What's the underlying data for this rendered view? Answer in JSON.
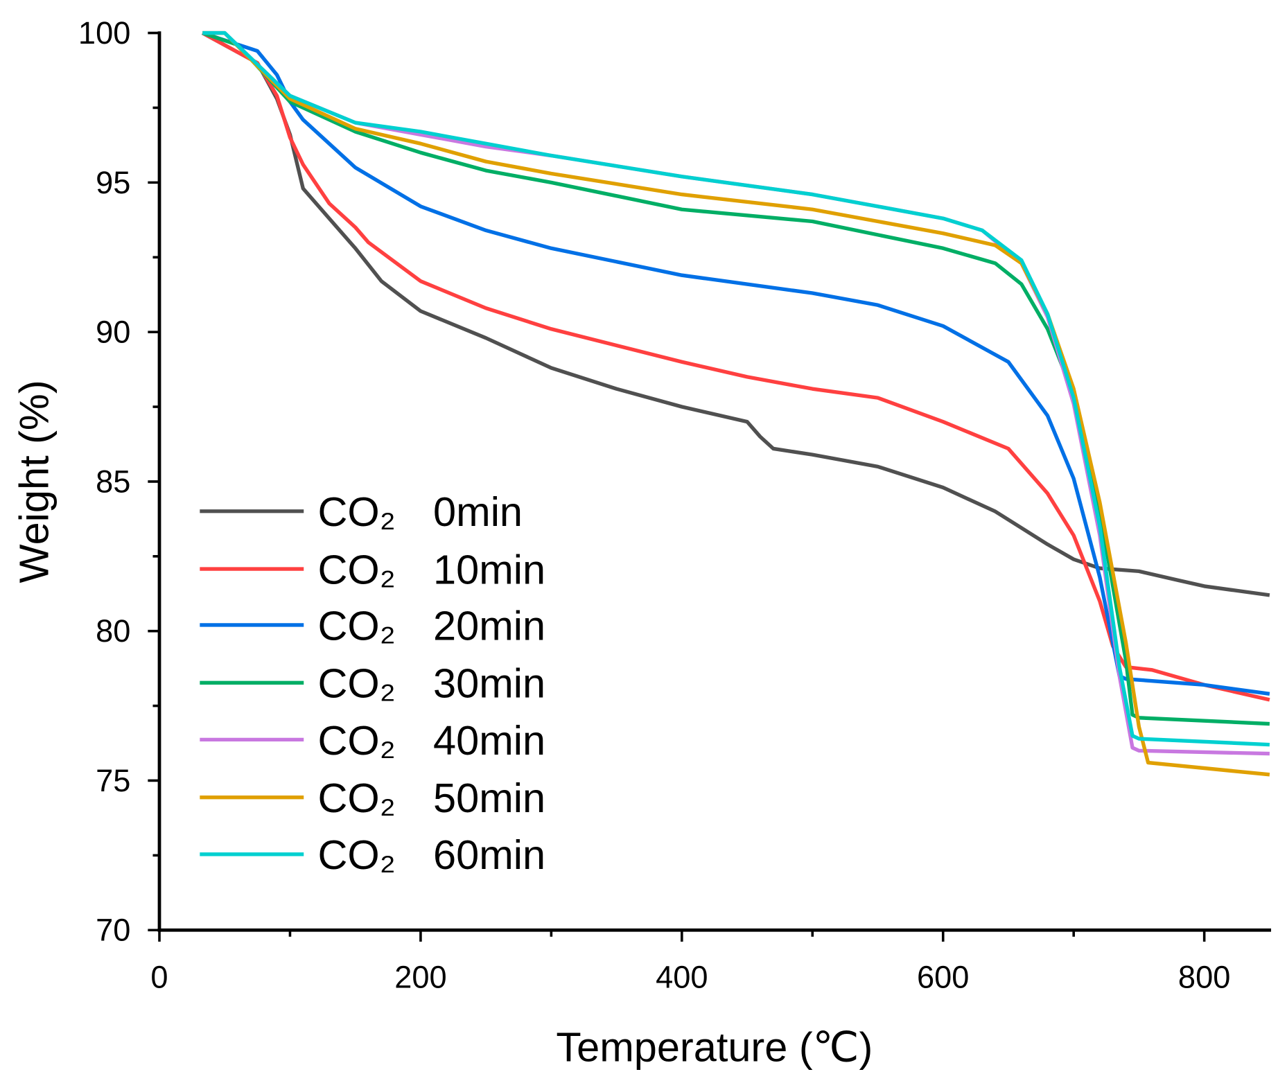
{
  "chart_data": {
    "type": "line",
    "title": "",
    "xlabel": "Temperature (℃)",
    "ylabel": "Weight (%)",
    "xlim": [
      0,
      850
    ],
    "ylim": [
      70,
      100
    ],
    "xticks": [
      0,
      200,
      400,
      600,
      800
    ],
    "yticks": [
      70,
      75,
      80,
      85,
      90,
      95,
      100
    ],
    "grid": false,
    "legend_position": "bottom-left",
    "series": [
      {
        "name": "CO₂  0min",
        "color": "#505050",
        "x": [
          33,
          75,
          90,
          100,
          110,
          130,
          150,
          170,
          200,
          250,
          300,
          350,
          400,
          450,
          460,
          470,
          500,
          550,
          600,
          640,
          680,
          700,
          720,
          750,
          780,
          800,
          850
        ],
        "y": [
          100,
          99.0,
          97.8,
          96.6,
          94.8,
          93.8,
          92.8,
          91.7,
          90.7,
          89.8,
          88.8,
          88.1,
          87.5,
          87.0,
          86.5,
          86.1,
          85.9,
          85.5,
          84.8,
          84.0,
          82.9,
          82.4,
          82.1,
          82.0,
          81.7,
          81.5,
          81.2
        ]
      },
      {
        "name": "CO₂  10min",
        "color": "#ff4040",
        "x": [
          33,
          75,
          90,
          100,
          110,
          130,
          150,
          160,
          200,
          250,
          300,
          400,
          450,
          500,
          550,
          600,
          650,
          680,
          700,
          720,
          730,
          740,
          760,
          800,
          850
        ],
        "y": [
          100,
          99.0,
          97.9,
          96.5,
          95.6,
          94.3,
          93.5,
          93.0,
          91.7,
          90.8,
          90.1,
          89.0,
          88.5,
          88.1,
          87.8,
          87.0,
          86.1,
          84.6,
          83.2,
          81.0,
          79.5,
          78.8,
          78.7,
          78.2,
          77.7
        ]
      },
      {
        "name": "CO₂  20min",
        "color": "#0070e6",
        "x": [
          33,
          75,
          90,
          100,
          110,
          150,
          200,
          250,
          300,
          400,
          500,
          550,
          600,
          650,
          680,
          700,
          720,
          735,
          740,
          800,
          850
        ],
        "y": [
          100,
          99.4,
          98.6,
          97.7,
          97.1,
          95.5,
          94.2,
          93.4,
          92.8,
          91.9,
          91.3,
          90.9,
          90.2,
          89.0,
          87.2,
          85.1,
          81.8,
          78.5,
          78.4,
          78.2,
          77.9
        ]
      },
      {
        "name": "CO₂  30min",
        "color": "#00ae65",
        "x": [
          33,
          60,
          100,
          150,
          200,
          250,
          300,
          400,
          500,
          600,
          640,
          660,
          680,
          700,
          720,
          740,
          745,
          750,
          850
        ],
        "y": [
          100,
          99.6,
          97.7,
          96.7,
          96.0,
          95.4,
          95.0,
          94.1,
          93.7,
          92.8,
          92.3,
          91.6,
          90.1,
          87.9,
          84.0,
          79.0,
          77.2,
          77.1,
          76.9
        ]
      },
      {
        "name": "CO₂  40min",
        "color": "#c878e0",
        "x": [
          33,
          50,
          100,
          150,
          200,
          250,
          300,
          400,
          500,
          600,
          630,
          660,
          680,
          700,
          720,
          735,
          745,
          750,
          850
        ],
        "y": [
          100,
          100,
          97.9,
          97.0,
          96.6,
          96.2,
          95.9,
          95.2,
          94.6,
          93.8,
          93.4,
          92.3,
          90.5,
          87.6,
          83.2,
          78.5,
          76.1,
          76.0,
          75.9
        ]
      },
      {
        "name": "CO₂  50min",
        "color": "#e0a000",
        "x": [
          33,
          50,
          100,
          150,
          200,
          250,
          300,
          400,
          500,
          600,
          640,
          660,
          680,
          700,
          720,
          740,
          750,
          757,
          780,
          850
        ],
        "y": [
          100,
          100,
          97.8,
          96.8,
          96.3,
          95.7,
          95.3,
          94.6,
          94.1,
          93.3,
          92.9,
          92.3,
          90.6,
          88.1,
          84.3,
          79.6,
          76.8,
          75.6,
          75.5,
          75.2
        ]
      },
      {
        "name": "CO₂  60min",
        "color": "#00d0d0",
        "x": [
          33,
          50,
          100,
          150,
          200,
          250,
          300,
          400,
          500,
          600,
          630,
          660,
          680,
          700,
          720,
          735,
          745,
          750,
          850
        ],
        "y": [
          100,
          100,
          97.9,
          97.0,
          96.7,
          96.3,
          95.9,
          95.2,
          94.6,
          93.8,
          93.4,
          92.4,
          90.6,
          87.8,
          83.5,
          78.8,
          76.5,
          76.4,
          76.2
        ]
      }
    ]
  }
}
